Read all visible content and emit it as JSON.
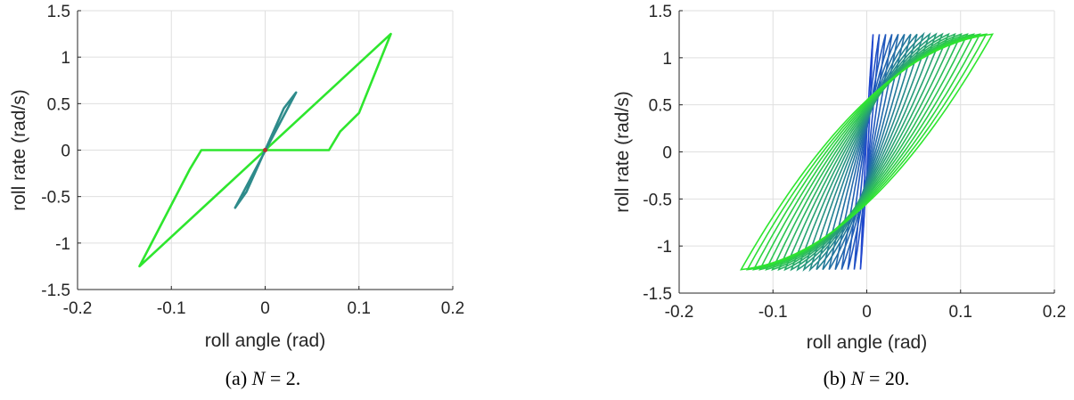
{
  "chart_data": [
    {
      "type": "line",
      "caption": {
        "prefix": "(a) ",
        "var": "N",
        "suffix": " = 2."
      },
      "xlabel": "roll angle (rad)",
      "ylabel": "roll rate (rad/s)",
      "xlim": [
        -0.2,
        0.2
      ],
      "ylim": [
        -1.5,
        1.5
      ],
      "xticks": [
        "-0.2",
        "-0.1",
        "0",
        "0.1",
        "0.2"
      ],
      "yticks": [
        "-1.5",
        "-1",
        "-0.5",
        "0",
        "0.5",
        "1",
        "1.5"
      ],
      "grid": true,
      "series": [
        {
          "color": "#2ee62e",
          "closed": true,
          "points": [
            [
              -0.134,
              -1.25
            ],
            [
              0.134,
              1.25
            ],
            [
              0.1,
              0.4
            ],
            [
              0.08,
              0.2
            ],
            [
              0.068,
              0.0
            ],
            [
              -0.068,
              0.0
            ],
            [
              -0.08,
              -0.2
            ],
            [
              -0.134,
              -1.25
            ]
          ]
        },
        {
          "color": "#2e8b8b",
          "closed": true,
          "points": [
            [
              -0.032,
              -0.62
            ],
            [
              0.033,
              0.62
            ],
            [
              0.02,
              0.45
            ],
            [
              0.0,
              0.0
            ],
            [
              -0.02,
              -0.45
            ],
            [
              -0.032,
              -0.62
            ]
          ]
        },
        {
          "color": "#b03030",
          "closed": false,
          "points": [
            [
              0.0,
              0.0
            ]
          ]
        }
      ]
    },
    {
      "type": "line",
      "caption": {
        "prefix": "(b) ",
        "var": "N",
        "suffix": " = 20."
      },
      "xlabel": "roll angle (rad)",
      "ylabel": "roll rate (rad/s)",
      "xlim": [
        -0.2,
        0.2
      ],
      "ylim": [
        -1.5,
        1.5
      ],
      "xticks": [
        "-0.2",
        "-0.1",
        "0",
        "0.1",
        "0.2"
      ],
      "yticks": [
        "-1.5",
        "-1",
        "-0.5",
        "0",
        "0.5",
        "1",
        "1.5"
      ],
      "grid": true,
      "family": {
        "count": 20,
        "x_max": 0.134,
        "y_max": 1.25,
        "color_outer": "#2ee62e",
        "color_inner": "#1f3fd6"
      }
    }
  ]
}
